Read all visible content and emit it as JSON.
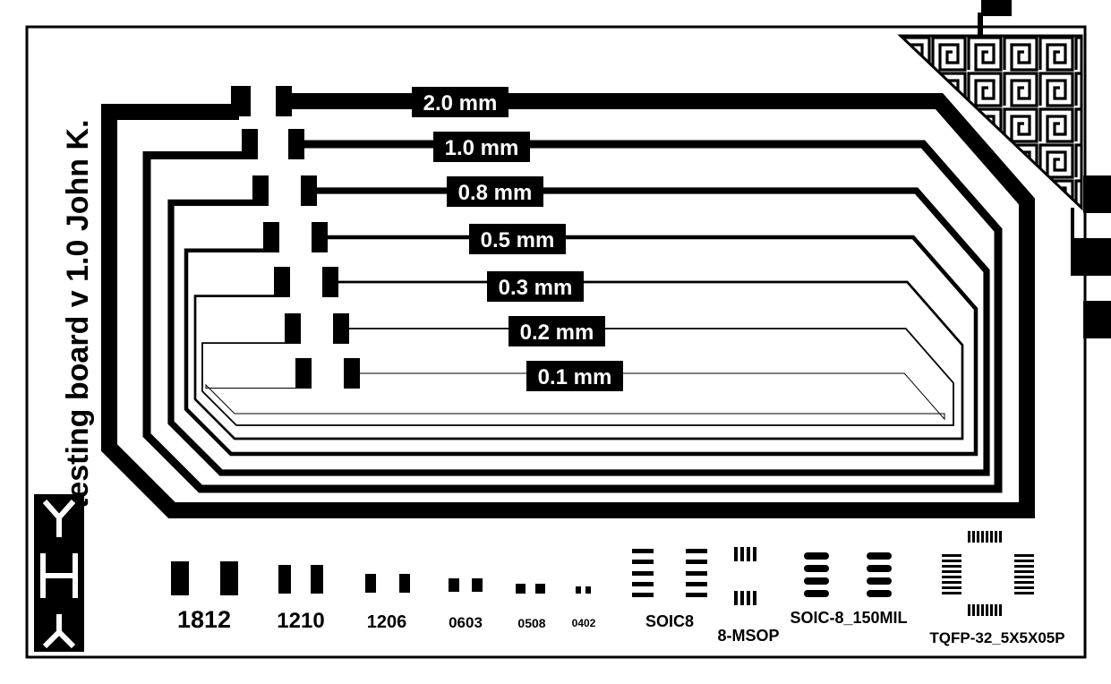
{
  "board": {
    "title": "testing board v 1.0  John K.",
    "colors": {
      "copper": "#000000",
      "background": "#ffffff"
    }
  },
  "traces": [
    {
      "label": "2.0 mm",
      "width_mm": 2.0
    },
    {
      "label": "1.0 mm",
      "width_mm": 1.0
    },
    {
      "label": "0.8 mm",
      "width_mm": 0.8
    },
    {
      "label": "0.5 mm",
      "width_mm": 0.5
    },
    {
      "label": "0.3 mm",
      "width_mm": 0.3
    },
    {
      "label": "0.2 mm",
      "width_mm": 0.2
    },
    {
      "label": "0.1 mm",
      "width_mm": 0.1
    }
  ],
  "footprints": [
    {
      "label": "1812"
    },
    {
      "label": "1210"
    },
    {
      "label": "1206"
    },
    {
      "label": "0603"
    },
    {
      "label": "0508"
    },
    {
      "label": "0402"
    },
    {
      "label": "SOIC8"
    },
    {
      "label": "8-MSOP"
    },
    {
      "label": "SOIC-8_150MIL"
    },
    {
      "label": "TQFP-32_5X5X05P"
    }
  ],
  "icons": [
    "logo-icon",
    "greek-key-pattern-icon",
    "fiducial-pad-icon"
  ]
}
